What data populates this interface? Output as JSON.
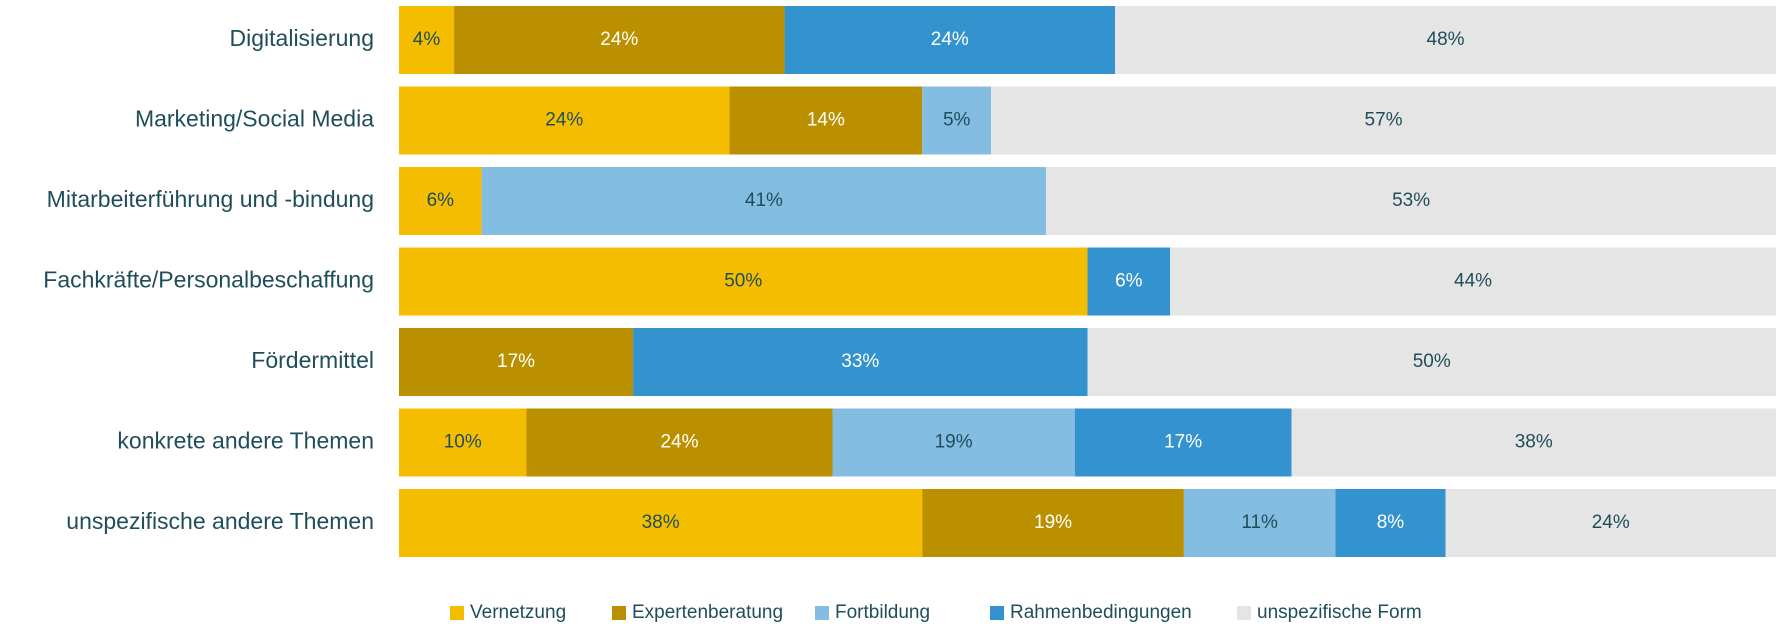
{
  "chart_data": {
    "type": "stacked_bar_horizontal",
    "categories": [
      "Digitalisierung",
      "Marketing/Social Media",
      "Mitarbeiterführung und -bindung",
      "Fachkräfte/Personalbeschaffung",
      "Fördermittel",
      "konkrete andere Themen",
      "unspezifische andere Themen"
    ],
    "series": [
      {
        "name": "Vernetzung",
        "color": "#f5bd00",
        "label_color": "#1f4e5a",
        "values": [
          4,
          24,
          6,
          50,
          null,
          10,
          38
        ],
        "value_labels": [
          "4%",
          "24%",
          "6%",
          "50%",
          null,
          "10%",
          "38%"
        ]
      },
      {
        "name": "Expertenberatung",
        "color": "#bb9000",
        "label_color": "#ffffff",
        "values": [
          24,
          14,
          null,
          null,
          17,
          24,
          19
        ],
        "value_labels": [
          "24%",
          "14%",
          null,
          null,
          "17%",
          "24%",
          "19%"
        ]
      },
      {
        "name": "Fortbildung",
        "color": "#84bde2",
        "label_color": "#1f4e5a",
        "values": [
          null,
          5,
          41,
          null,
          null,
          19,
          11
        ],
        "value_labels": [
          null,
          "5%",
          "41%",
          null,
          null,
          "19%",
          "11%"
        ]
      },
      {
        "name": "Rahmenbedingungen",
        "color": "#3393cf",
        "label_color": "#ffffff",
        "values": [
          24,
          null,
          null,
          6,
          33,
          17,
          8
        ],
        "value_labels": [
          "24%",
          null,
          null,
          "6%",
          "33%",
          "17%",
          "8%"
        ]
      },
      {
        "name": "unspezifische Form",
        "color": "#e5e5e5",
        "label_color": "#1f4e5a",
        "values": [
          48,
          57,
          53,
          44,
          50,
          38,
          24
        ],
        "value_labels": [
          "48%",
          "57%",
          "53%",
          "44%",
          "50%",
          "38%",
          "24%"
        ]
      }
    ],
    "legend": "bottom"
  }
}
